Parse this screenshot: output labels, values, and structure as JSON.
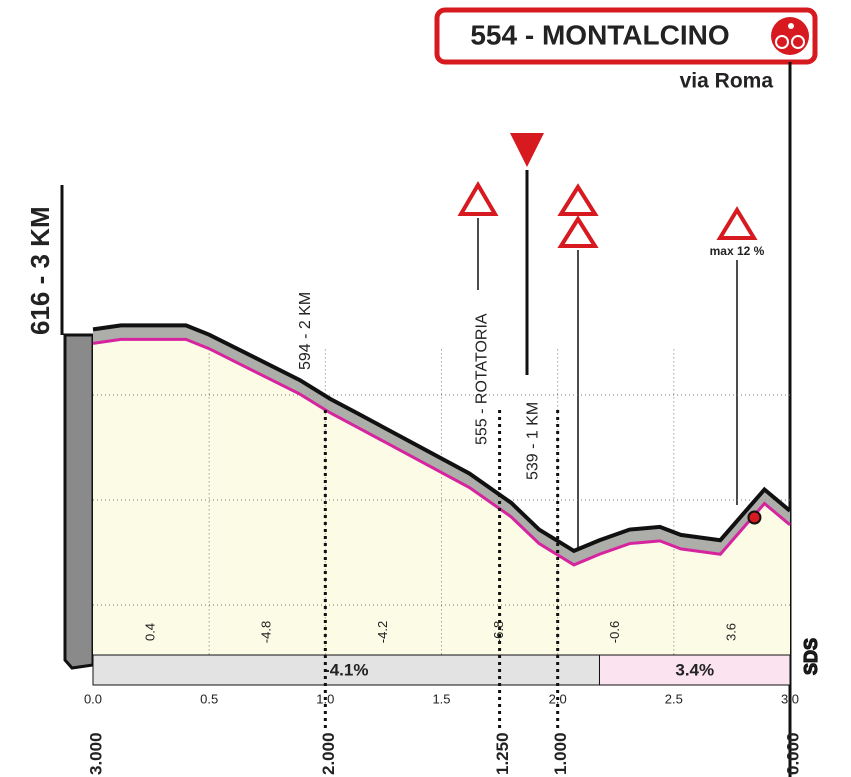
{
  "chart_data": {
    "type": "elevation_profile",
    "title": "554 - MONTALCINO",
    "subtitle": "via Roma",
    "start_label": "616 - 3 KM",
    "logo": "SDS",
    "x": [
      0,
      0.12,
      0.4,
      0.5,
      0.89,
      1.02,
      1.15,
      1.62,
      1.8,
      1.92,
      2.07,
      2.18,
      2.31,
      2.44,
      2.53,
      2.7,
      2.89,
      3.0
    ],
    "values": [
      616,
      617.5,
      617.5,
      614,
      597,
      590,
      584,
      562,
      551,
      541,
      533,
      537,
      541,
      542,
      539,
      537,
      556,
      548
    ],
    "xlim": [
      0,
      3
    ],
    "ylim": [
      494,
      627
    ],
    "xticks": [
      {
        "value": 0,
        "label": "0.0"
      },
      0.5,
      {
        "value": 1,
        "label": "1.0"
      },
      1.5,
      {
        "value": 2,
        "label": "2.0"
      },
      2.5,
      {
        "value": 3,
        "label": "3.0"
      }
    ],
    "remaining_ticks": [
      {
        "value": 3,
        "label": "3.000"
      },
      {
        "value": 2,
        "label": "2.000"
      },
      {
        "value": 1.25,
        "label": "1.250"
      },
      {
        "value": 1,
        "label": "1.000"
      },
      {
        "value": 0,
        "label": "0.000"
      }
    ],
    "gradients": [
      0.4,
      -4.8,
      -4.2,
      -6.8,
      -0.6,
      3.6
    ],
    "sections": [
      {
        "from": 0,
        "to": 2.18,
        "value": -4.1,
        "label": "-4.1%",
        "color": "#e3e3e3"
      },
      {
        "from": 2.18,
        "to": 3,
        "value": 3.4,
        "label": "3.4%",
        "color": "#fbe3ef"
      }
    ],
    "markers": [
      {
        "label": "594 - 2 KM",
        "x": 0.89
      },
      {
        "label": "555 - ROTATORIA",
        "x": 1.65
      },
      {
        "label": "539 - 1 KM",
        "x": 1.87
      }
    ],
    "climb_label": "max 12 %",
    "line_color": "#d6249f"
  }
}
